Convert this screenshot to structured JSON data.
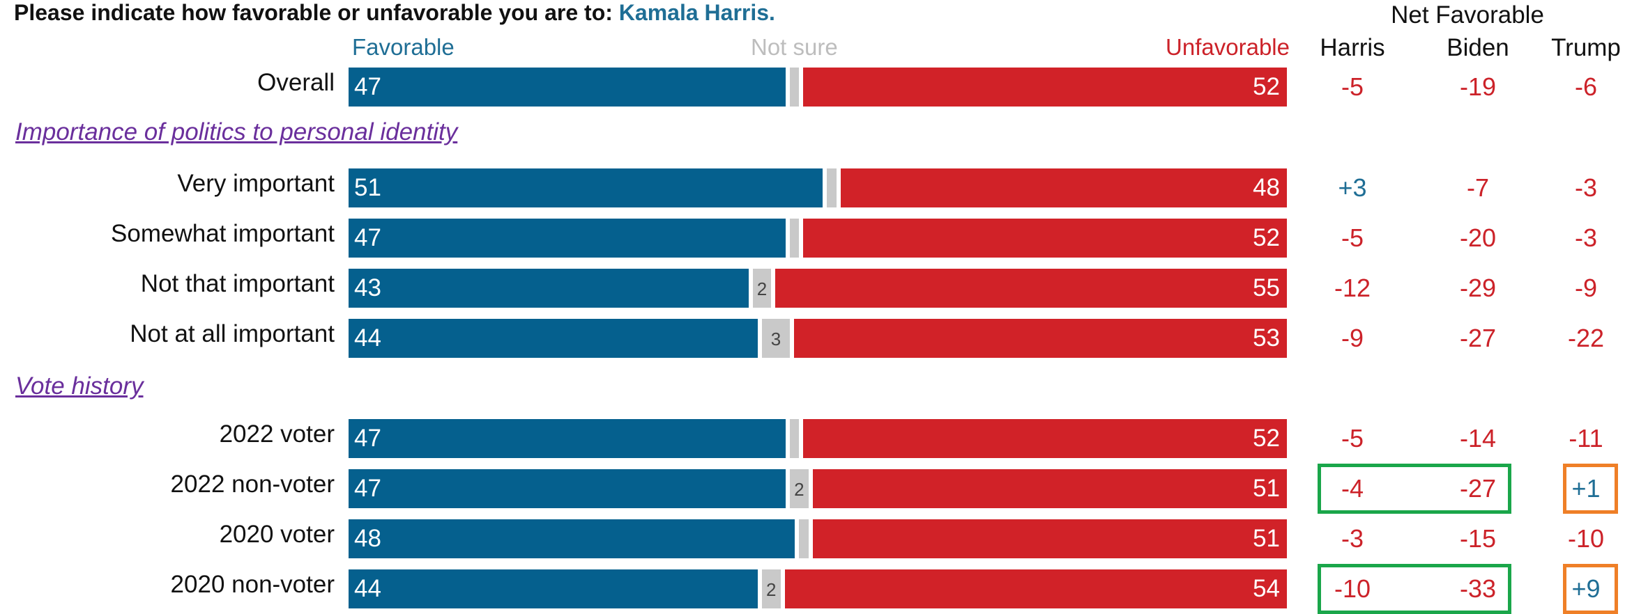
{
  "question": {
    "prefix": "Please indicate how favorable or unfavorable you are to:",
    "subject": "Kamala Harris."
  },
  "headers": {
    "favorable": "Favorable",
    "not_sure": "Not sure",
    "unfavorable": "Unfavorable",
    "net_favorable": "Net Favorable",
    "net_cols": [
      "Harris",
      "Biden",
      "Trump"
    ]
  },
  "sections": {
    "identity": "Importance of politics to personal identity",
    "vote": "Vote history"
  },
  "colors": {
    "favorable": "#05608e",
    "unfavorable": "#d12228",
    "not_sure": "#c9c9c9",
    "positive_net": "#1f6e95",
    "negative_net": "#cc2229",
    "section": "#6a2f9c",
    "highlight_green": "#1aa64a",
    "highlight_orange": "#ef7f27"
  },
  "chart_data": {
    "type": "bar",
    "stacked": true,
    "orientation": "horizontal",
    "categories": [
      "Overall",
      "Very important",
      "Somewhat important",
      "Not that important",
      "Not at all important",
      "2022 voter",
      "2022 non-voter",
      "2020 voter",
      "2020 non-voter"
    ],
    "series": [
      {
        "name": "Favorable",
        "values": [
          47,
          51,
          47,
          43,
          44,
          47,
          47,
          48,
          44
        ]
      },
      {
        "name": "Not sure",
        "values": [
          1,
          1,
          1,
          2,
          3,
          1,
          2,
          1,
          2
        ]
      },
      {
        "name": "Unfavorable",
        "values": [
          52,
          48,
          52,
          55,
          53,
          52,
          51,
          51,
          54
        ]
      }
    ],
    "not_sure_labels": [
      "",
      "",
      "",
      "2",
      "3",
      "",
      "2",
      "",
      "2"
    ],
    "net_favorable": {
      "Harris": [
        "-5",
        "+3",
        "-5",
        "-12",
        "-9",
        "-5",
        "-4",
        "-3",
        "-10"
      ],
      "Biden": [
        "-19",
        "-7",
        "-20",
        "-29",
        "-27",
        "-14",
        "-27",
        "-15",
        "-33"
      ],
      "Trump": [
        "-6",
        "-3",
        "-3",
        "-9",
        "-22",
        "-11",
        "+1",
        "-10",
        "+9"
      ]
    },
    "highlighted_rows": [
      "2022 non-voter",
      "2020 non-voter"
    ]
  }
}
